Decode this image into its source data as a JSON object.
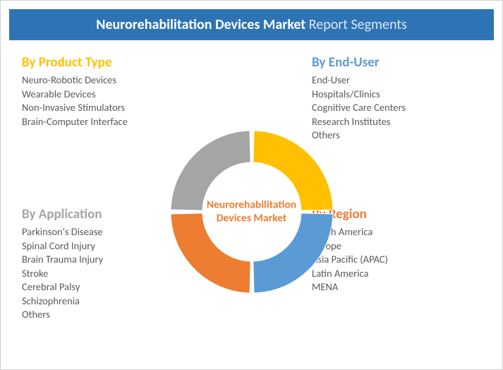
{
  "header": {
    "title_bold": "Neurorehabilitation Devices Market",
    "title_light": " Report Segments",
    "bg_color": "#2e74b5",
    "bold_color": "#ffffff",
    "light_color": "#dbe7f3"
  },
  "center": {
    "line1": "Neurorehabilitation",
    "line2": "Devices Market",
    "color": "#ed7d31"
  },
  "segments": {
    "top_left": {
      "title": "By Product Type",
      "title_color": "#ffc000",
      "items": [
        "Neuro-Robotic Devices",
        "Wearable Devices",
        "Non-Invasive Stimulators",
        "Brain-Computer Interface"
      ]
    },
    "top_right": {
      "title": "By End-User",
      "title_color": "#5b9bd5",
      "items": [
        "End-User",
        "Hospitals/Clinics",
        "Cognitive Care Centers",
        "Research Institutes",
        "Others"
      ]
    },
    "bottom_left": {
      "title": "By Application",
      "title_color": "#a5a5a5",
      "items": [
        "Parkinson's Disease",
        "Spinal Cord Injury",
        "Brain Trauma Injury",
        "Stroke",
        "Cerebral Palsy",
        "Schizophrenia",
        "Others"
      ]
    },
    "bottom_right": {
      "title": "By Region",
      "title_color": "#ed7d31",
      "items": [
        "North America",
        "Europe",
        "Asia Pacific (APAC)",
        "Latin America",
        "MENA"
      ]
    }
  },
  "donut": {
    "type": "donut",
    "outer_r": 115,
    "inner_r": 70,
    "gap_deg": 3,
    "slices": [
      {
        "start": -90,
        "end": 0,
        "color": "#ffc000"
      },
      {
        "start": 0,
        "end": 90,
        "color": "#5b9bd5"
      },
      {
        "start": 90,
        "end": 180,
        "color": "#ed7d31"
      },
      {
        "start": 180,
        "end": 270,
        "color": "#a5a5a5"
      }
    ],
    "stroke": "#ffffff",
    "stroke_width": 1
  },
  "item_color": "#595959",
  "item_fontsize": 14.5,
  "title_fontsize": 19
}
